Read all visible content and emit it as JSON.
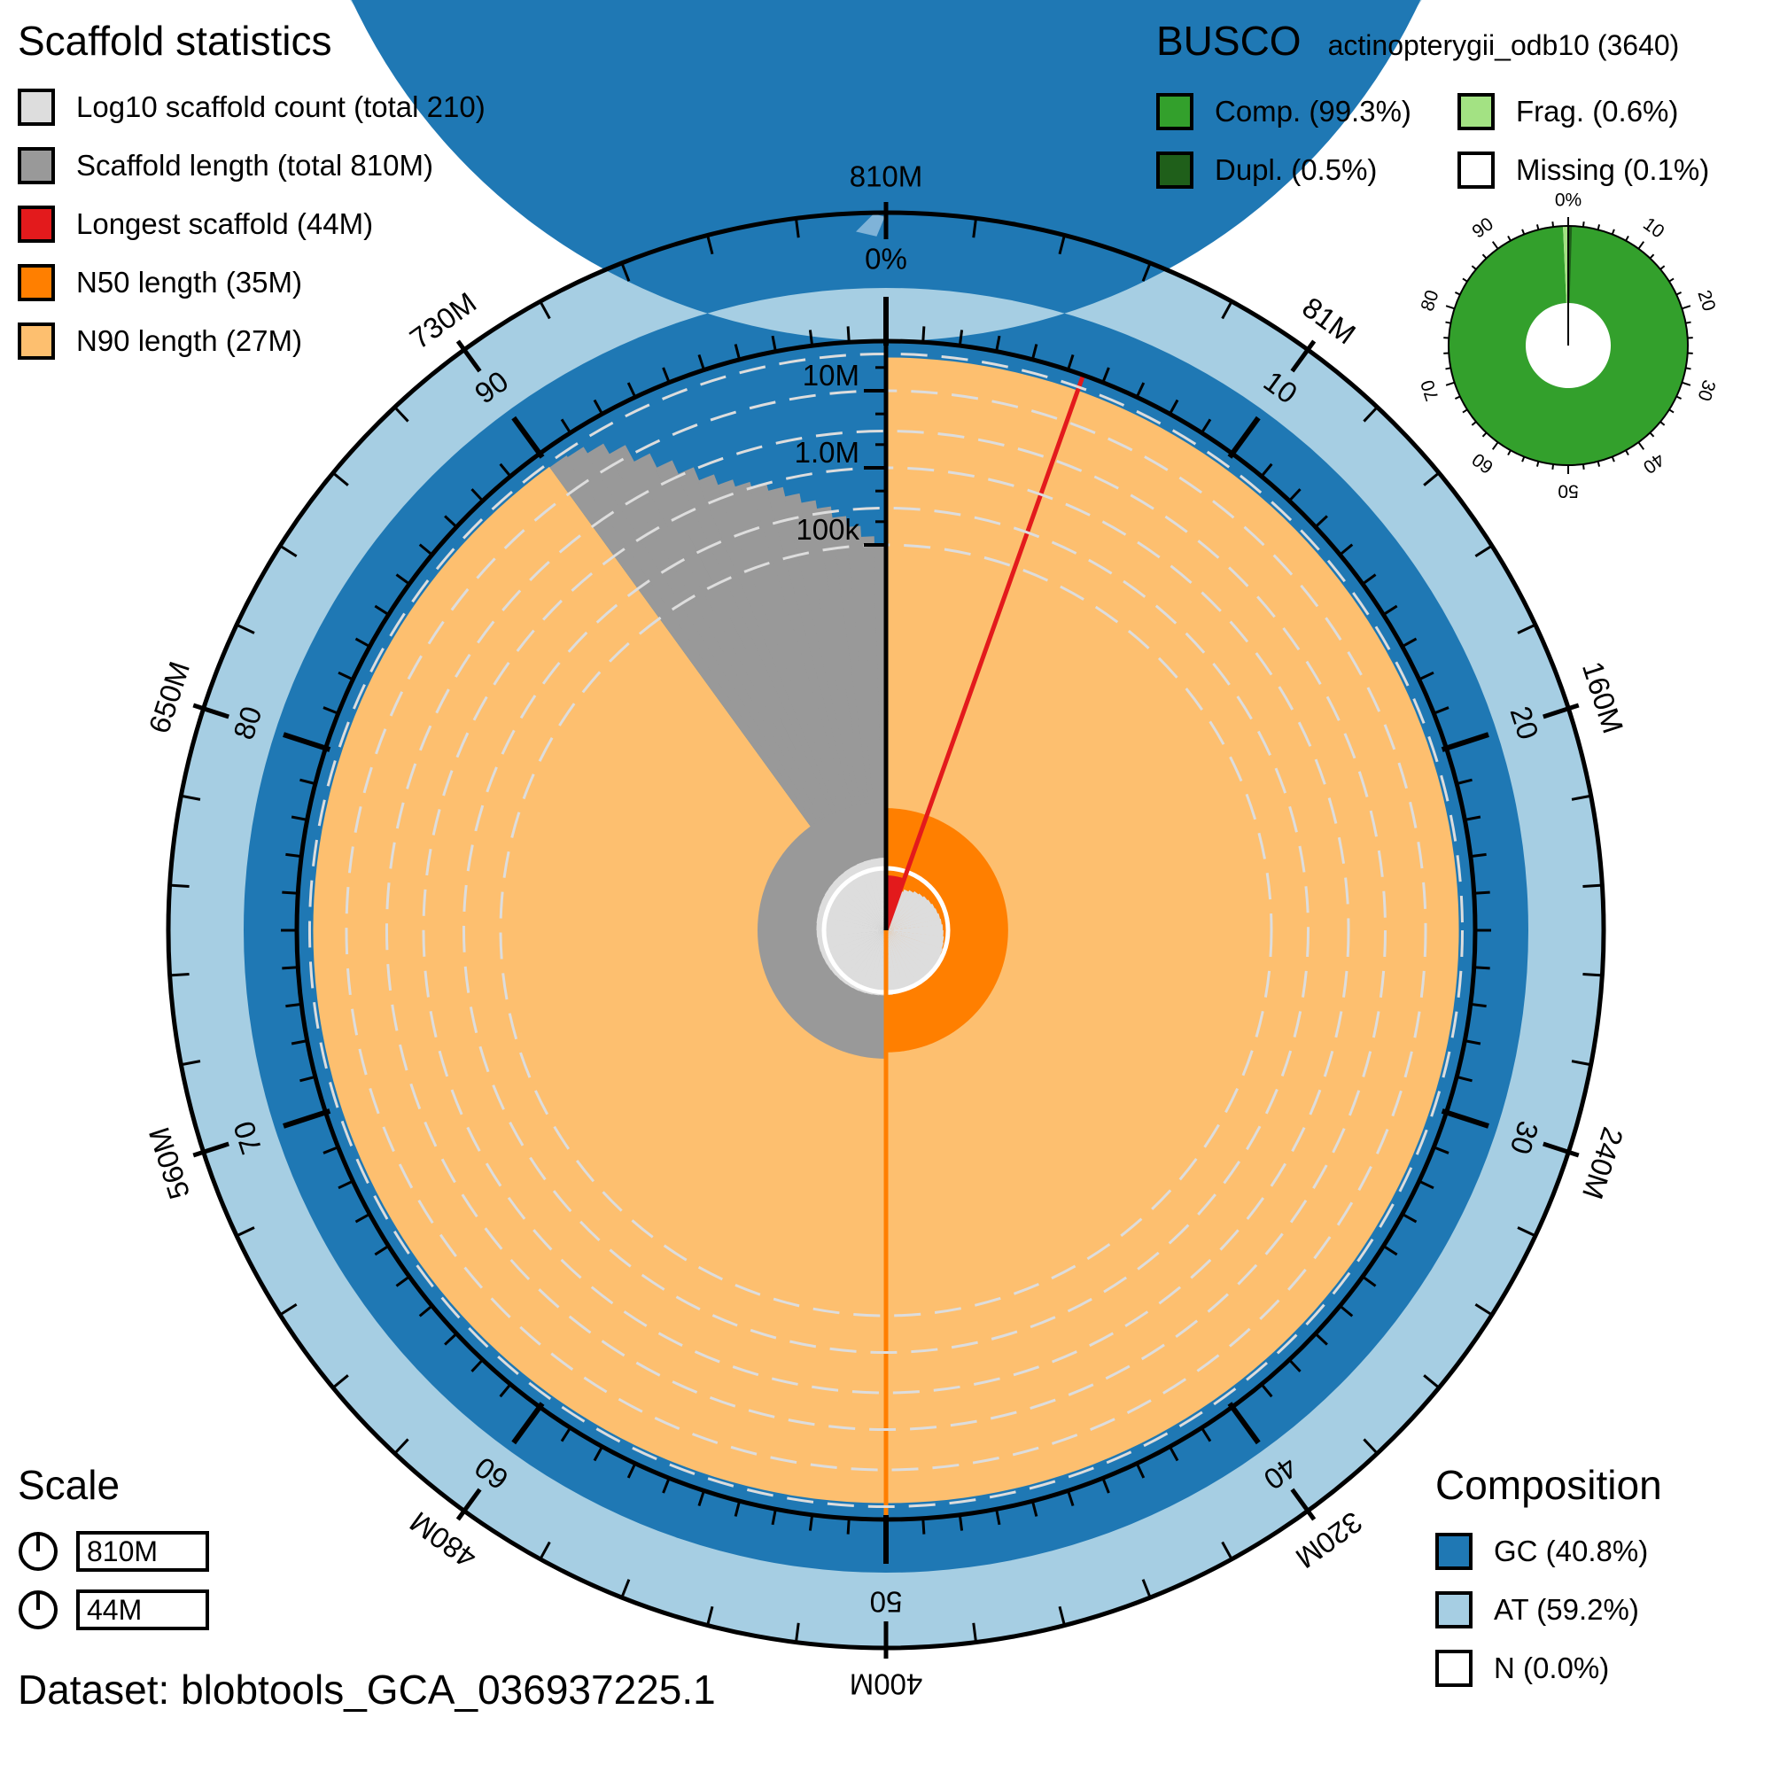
{
  "chart_data": {
    "type": "snail",
    "scaffold_legend": {
      "title": "Scaffold statistics",
      "items": [
        {
          "label": "Log10 scaffold count (total 210)",
          "color": "#dddddd"
        },
        {
          "label": "Scaffold length (total 810M)",
          "color": "#999999"
        },
        {
          "label": "Longest scaffold (44M)",
          "color": "#e31a1c"
        },
        {
          "label": "N50 length (35M)",
          "color": "#ff7f00"
        },
        {
          "label": "N90 length (27M)",
          "color": "#fdbf6f"
        }
      ]
    },
    "busco": {
      "title": "BUSCO",
      "lineage": "actinopterygii_odb10 (3640)",
      "items": [
        {
          "label": "Comp. (99.3%)",
          "color": "#33a02c"
        },
        {
          "label": "Frag. (0.6%)",
          "color": "#a3e283"
        },
        {
          "label": "Dupl. (0.5%)",
          "color": "#1f5f1a"
        },
        {
          "label": "Missing (0.1%)",
          "color": "#ffffff"
        }
      ],
      "complete_pct": 99.3,
      "duplicated_pct": 0.5,
      "fragmented_pct": 0.6,
      "missing_pct": 0.1,
      "ticks": [
        "0%",
        "10",
        "20",
        "30",
        "40",
        "50",
        "60",
        "70",
        "80",
        "90"
      ]
    },
    "composition": {
      "title": "Composition",
      "items": [
        {
          "label": "GC (40.8%)",
          "color": "#1f78b4"
        },
        {
          "label": "AT (59.2%)",
          "color": "#a6cee3"
        },
        {
          "label": "N (0.0%)",
          "color": "#ffffff"
        }
      ],
      "gc_pct": 40.8,
      "at_pct": 59.2
    },
    "scale": {
      "title": "Scale",
      "items": [
        "810M",
        "44M"
      ]
    },
    "dataset": "Dataset: blobtools_GCA_036937225.1",
    "total_length_mb": 810,
    "longest_mb": 44,
    "n50_mb": 35,
    "n90_mb": 27,
    "n50_position_pct": 50,
    "n90_position_pct": 90,
    "length_axis_labels": [
      "810M",
      "81M",
      "160M",
      "240M",
      "320M",
      "400M",
      "480M",
      "560M",
      "650M",
      "730M"
    ],
    "percent_axis_labels": [
      "0%",
      "10",
      "20",
      "30",
      "40",
      "50",
      "60",
      "70",
      "80",
      "90"
    ],
    "radial_scale_labels": [
      "100k",
      "1.0M",
      "10M"
    ],
    "radial_scale_values": [
      0.1,
      1,
      10
    ]
  }
}
